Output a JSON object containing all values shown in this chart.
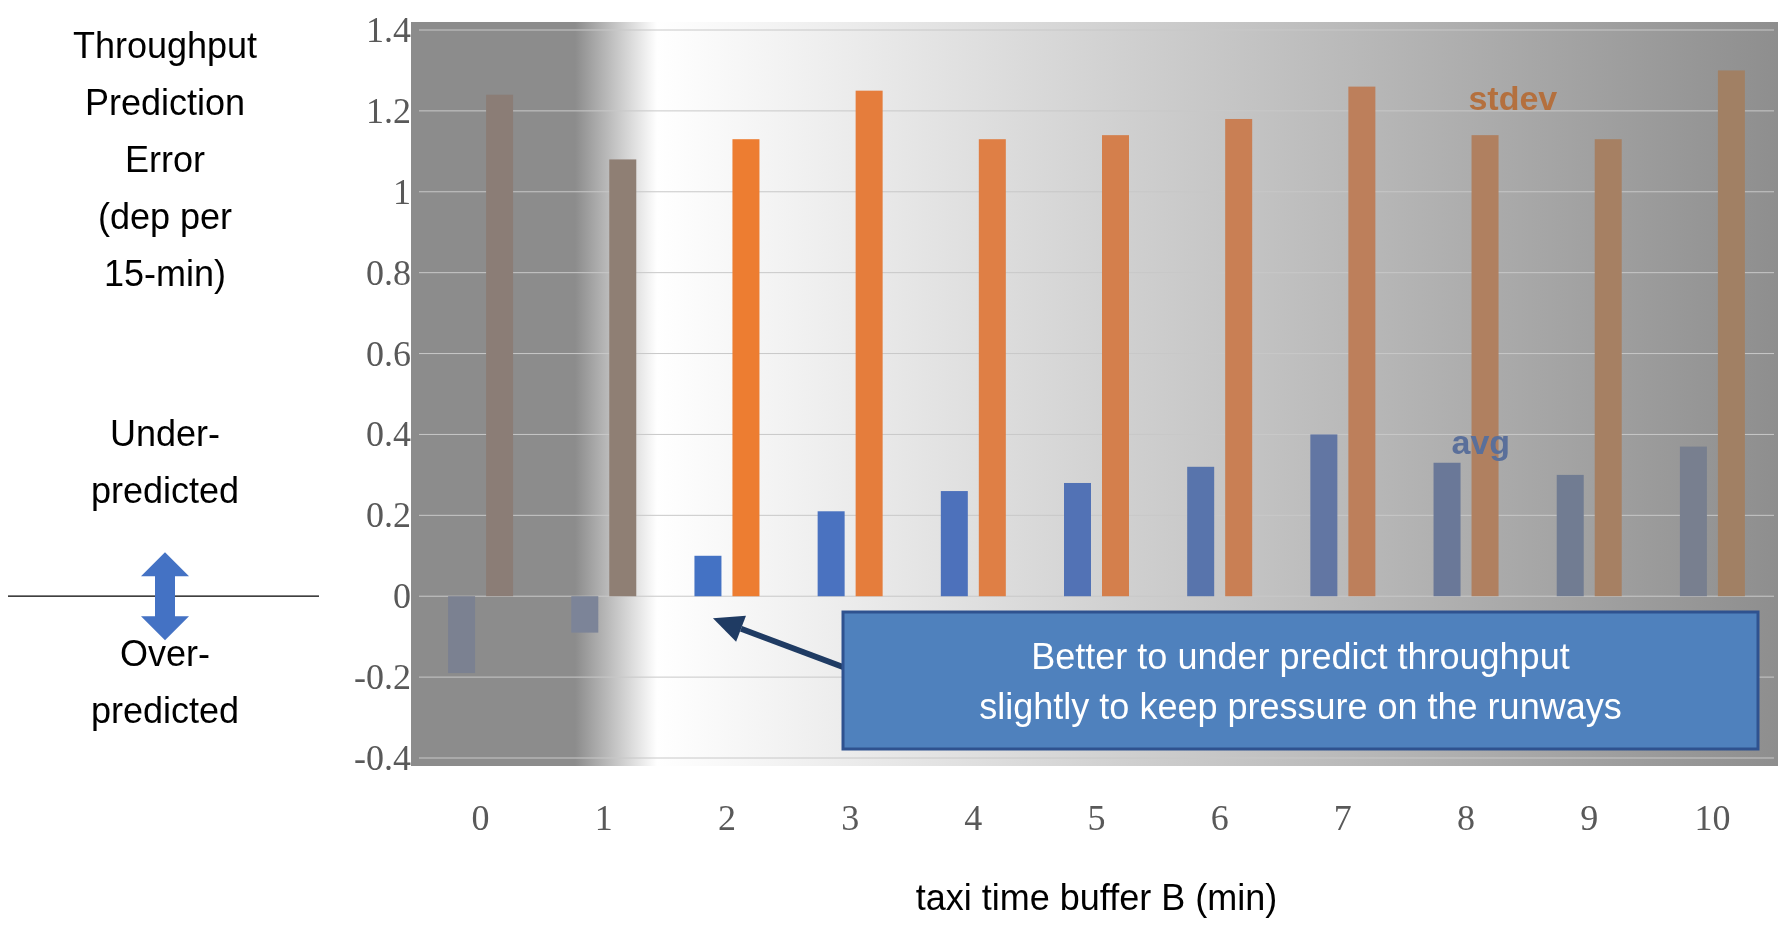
{
  "chart_data": {
    "type": "bar",
    "ylabel": "Throughput Prediction Error (dep per 15-min)",
    "xlabel": "taxi time buffer B (min)",
    "categories": [
      "0",
      "1",
      "2",
      "3",
      "4",
      "5",
      "6",
      "7",
      "8",
      "9",
      "10"
    ],
    "series": [
      {
        "name": "avg",
        "color": "#5a6f9a",
        "colors": [
          "#7b8191",
          "#7c8498",
          "#4472c4",
          "#4a72c0",
          "#4d71bb",
          "#5272b5",
          "#5874ac",
          "#6276a3",
          "#6a7898",
          "#717c92",
          "#787f8f"
        ],
        "values": [
          -0.19,
          -0.09,
          0.1,
          0.21,
          0.26,
          0.28,
          0.32,
          0.4,
          0.33,
          0.3,
          0.37
        ]
      },
      {
        "name": "stdev",
        "color": "#b4703e",
        "colors": [
          "#8b7d76",
          "#8f7f74",
          "#ed7d31",
          "#e57d3c",
          "#df7f45",
          "#d47f4c",
          "#c97f54",
          "#bd7f5b",
          "#b08060",
          "#a68063",
          "#a18064"
        ],
        "values": [
          1.24,
          1.08,
          1.13,
          1.25,
          1.13,
          1.14,
          1.18,
          1.26,
          1.14,
          1.13,
          1.3
        ]
      }
    ],
    "ylim": [
      -0.4,
      1.4
    ],
    "yticks": [
      -0.4,
      -0.2,
      0,
      0.2,
      0.4,
      0.6,
      0.8,
      1,
      1.2,
      1.4
    ],
    "grid": "y",
    "annotations": [
      "Under-predicted",
      "Over-predicted",
      "Better to under predict throughput slightly to keep pressure on the runways"
    ]
  }
}
